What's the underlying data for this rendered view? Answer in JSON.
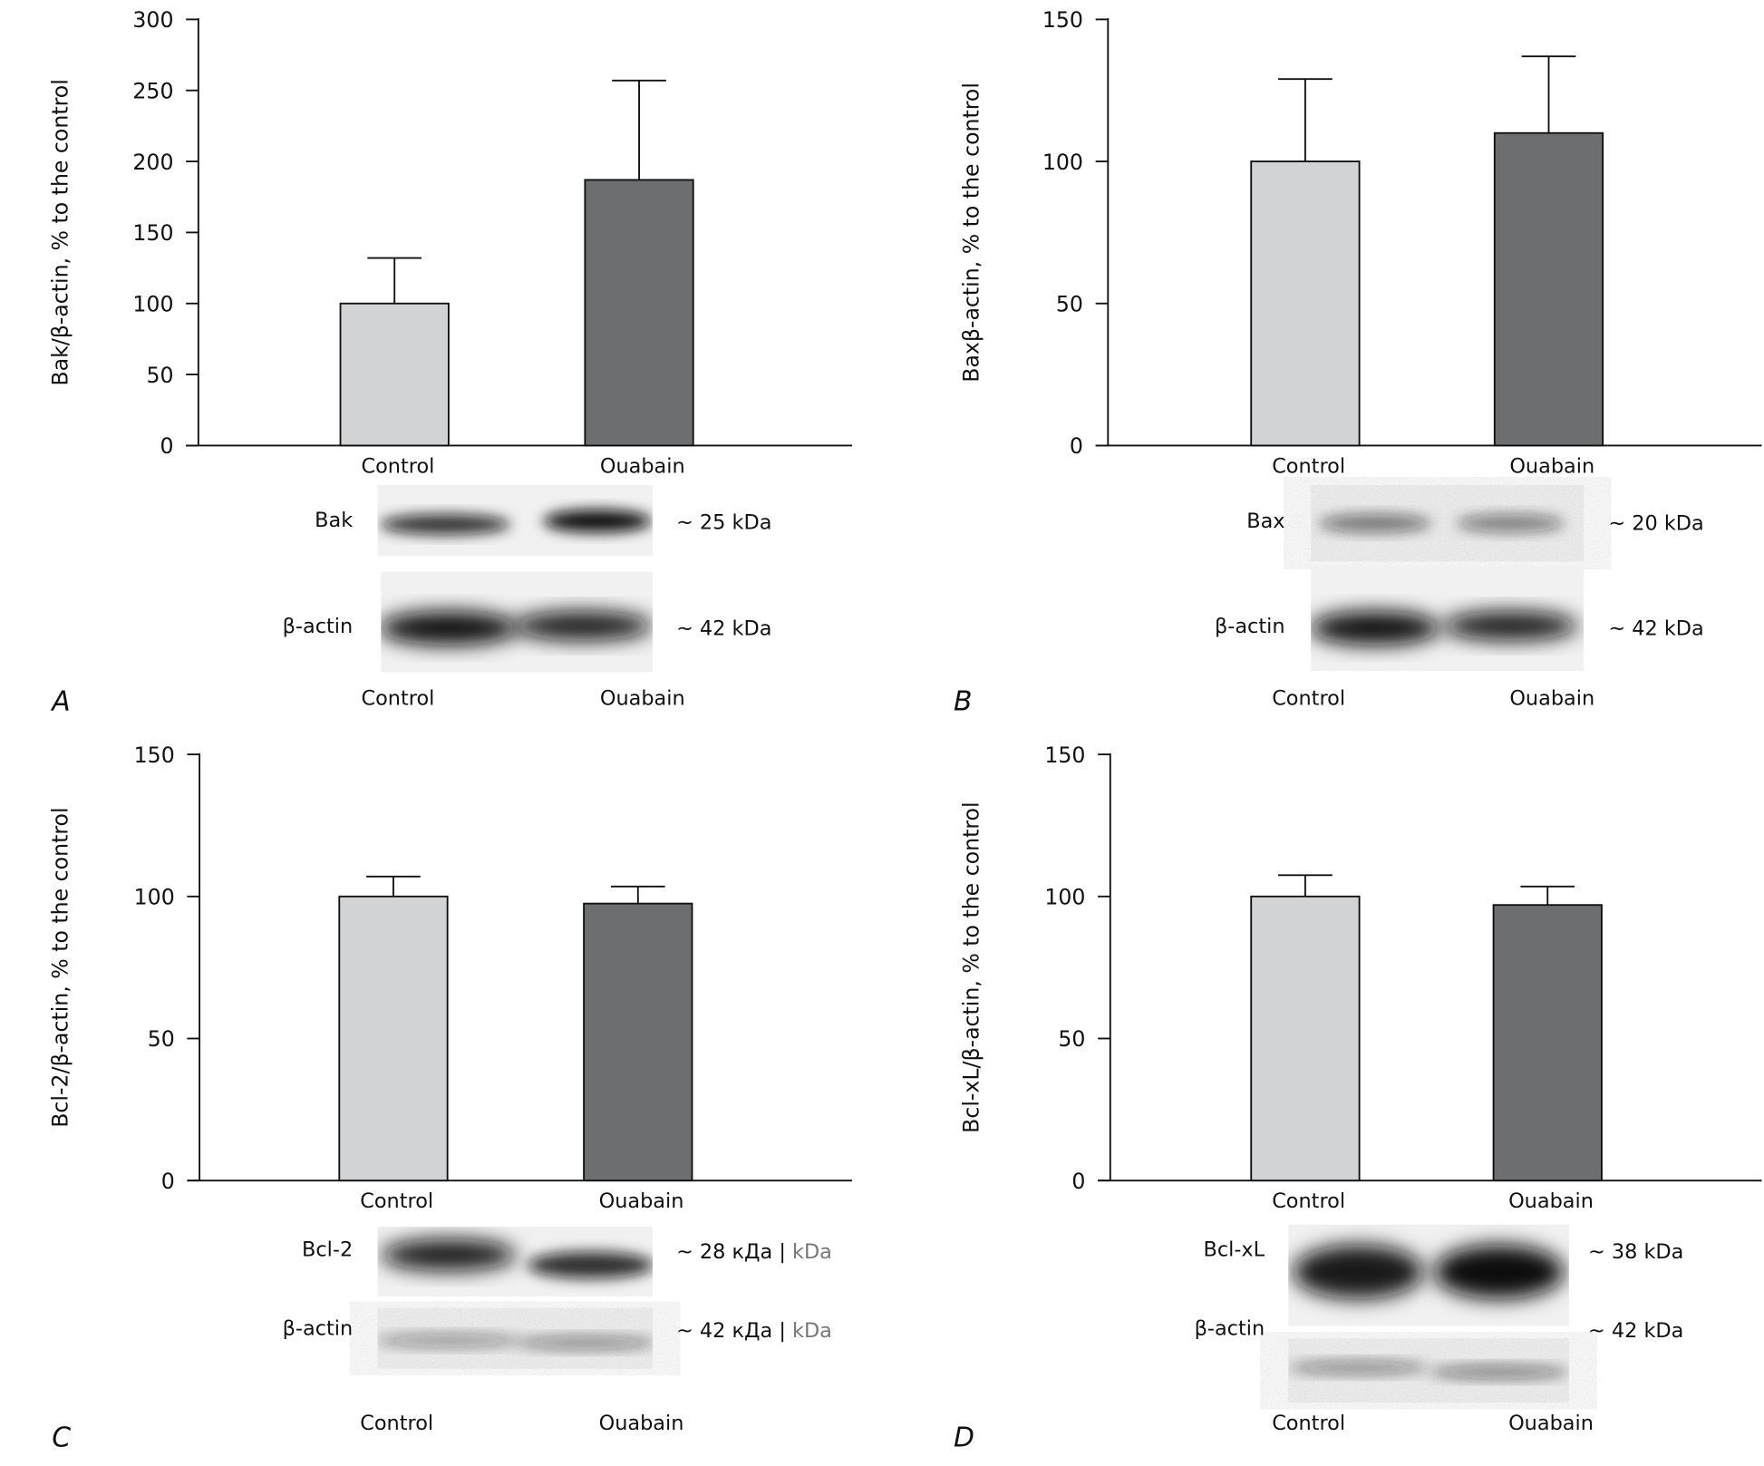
{
  "chart_data": [
    {
      "type": "bar",
      "panel": "A",
      "categories": [
        "Control",
        "Ouabain"
      ],
      "values": [
        100,
        187
      ],
      "error_upper": [
        132,
        257
      ],
      "ylabel": "Bak/β-actin, % to the control",
      "ylim": [
        0,
        300
      ],
      "yticks": [
        0,
        50,
        100,
        150,
        200,
        250,
        300
      ],
      "colors": [
        "#d2d3d5",
        "#6d6e70"
      ],
      "blot": {
        "rows": [
          {
            "label": "Bak",
            "kda": "~ 25 kDa"
          },
          {
            "label": "β-actin",
            "kda": "~ 42 kDa"
          }
        ],
        "lanes": [
          "Control",
          "Ouabain"
        ]
      }
    },
    {
      "type": "bar",
      "panel": "B",
      "categories": [
        "Control",
        "Ouabain"
      ],
      "values": [
        100,
        110
      ],
      "error_upper": [
        129,
        137
      ],
      "ylabel": "Baxβ-actin, % to the control",
      "ylim": [
        0,
        150
      ],
      "yticks": [
        0,
        50,
        100,
        150
      ],
      "colors": [
        "#d2d3d5",
        "#6d6e70"
      ],
      "blot": {
        "rows": [
          {
            "label": "Bax",
            "kda": "~ 20 kDa"
          },
          {
            "label": "β-actin",
            "kda": "~ 42 kDa"
          }
        ],
        "lanes": [
          "Control",
          "Ouabain"
        ]
      }
    },
    {
      "type": "bar",
      "panel": "C",
      "categories": [
        "Control",
        "Ouabain"
      ],
      "values": [
        100,
        97.5
      ],
      "error_upper": [
        107,
        103.5
      ],
      "ylabel": "Bcl-2/β-actin, % to the control",
      "ylim": [
        0,
        150
      ],
      "yticks": [
        0,
        50,
        100,
        150
      ],
      "colors": [
        "#d2d3d5",
        "#6d6e70"
      ],
      "blot": {
        "rows": [
          {
            "label": "Bcl-2",
            "kda": "~ 28 кДа |",
            "kda_alt": " kDa"
          },
          {
            "label": "β-actin",
            "kda": "~ 42 кДа |",
            "kda_alt": " kDa"
          }
        ],
        "lanes": [
          "Control",
          "Ouabain"
        ]
      }
    },
    {
      "type": "bar",
      "panel": "D",
      "categories": [
        "Control",
        "Ouabain"
      ],
      "values": [
        100,
        97
      ],
      "error_upper": [
        107.5,
        103.5
      ],
      "ylabel": "Bcl-xL/β-actin, % to the control",
      "ylim": [
        0,
        150
      ],
      "yticks": [
        0,
        50,
        100,
        150
      ],
      "colors": [
        "#d2d3d5",
        "#6d6e70"
      ],
      "blot": {
        "rows": [
          {
            "label": "Bcl-xL",
            "kda": "~ 38 kDa"
          },
          {
            "label": "β-actin",
            "kda": "~ 42 kDa"
          }
        ],
        "lanes": [
          "Control",
          "Ouabain"
        ]
      }
    }
  ]
}
